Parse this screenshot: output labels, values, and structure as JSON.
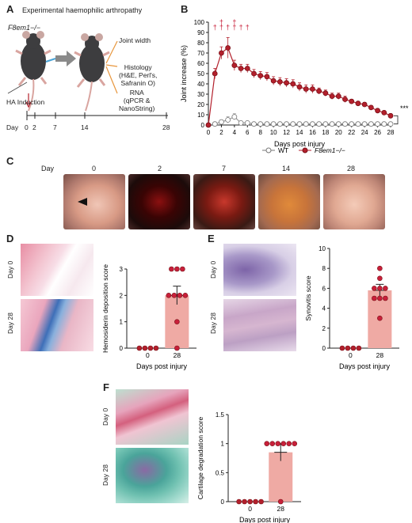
{
  "panels": {
    "A": "A",
    "B": "B",
    "C": "C",
    "D": "D",
    "E": "E",
    "F": "F"
  },
  "panel_a": {
    "title": "Experimental haemophilic arthropathy",
    "mouse_label": "F8em1−/−",
    "induction": "HA Induction",
    "timeline_label": "Day",
    "days": [
      "0",
      "2",
      "7",
      "14",
      "28"
    ],
    "outcomes": [
      "Joint width",
      "Histology\n(H&E, Perl's,\nSafranin O)",
      "RNA\n(qPCR &\nNanoString)"
    ]
  },
  "panel_c": {
    "day_label": "Day",
    "days": [
      "0",
      "2",
      "7",
      "14",
      "28"
    ]
  },
  "panel_d": {
    "row_labels": [
      "Day 0",
      "Day 28"
    ]
  },
  "panel_e": {
    "row_labels": [
      "Day 0",
      "Day 28"
    ]
  },
  "panel_f": {
    "row_labels": [
      "Day 0",
      "Day 28"
    ]
  },
  "chart_data": [
    {
      "id": "B",
      "type": "line",
      "xlabel": "Days post injury",
      "ylabel": "Joint increase (%)",
      "xlim": [
        0,
        28
      ],
      "ylim": [
        0,
        100
      ],
      "xticks": [
        0,
        2,
        4,
        6,
        8,
        10,
        12,
        14,
        16,
        18,
        20,
        22,
        24,
        26,
        28
      ],
      "yticks": [
        0,
        10,
        20,
        30,
        40,
        50,
        60,
        70,
        80,
        90,
        100
      ],
      "legend_position": "top-right",
      "significance": "***",
      "dagger_days": [
        1,
        2,
        3,
        4,
        5,
        6
      ],
      "series": [
        {
          "name": "WT",
          "color": "#9a9a9a",
          "x": [
            0,
            1,
            2,
            3,
            4,
            5,
            6,
            7,
            8,
            9,
            10,
            11,
            12,
            13,
            14,
            15,
            16,
            17,
            18,
            19,
            20,
            21,
            22,
            23,
            24,
            25,
            26,
            27,
            28
          ],
          "y": [
            0,
            1,
            3,
            5,
            8,
            2,
            2,
            1,
            1,
            1,
            1,
            1,
            1,
            1,
            1,
            1,
            1,
            1,
            1,
            1,
            1,
            1,
            1,
            1,
            1,
            1,
            1,
            1,
            1
          ],
          "err": [
            0,
            1,
            2,
            3,
            3,
            1,
            1,
            1,
            1,
            1,
            1,
            1,
            1,
            1,
            1,
            1,
            1,
            1,
            1,
            1,
            1,
            1,
            1,
            1,
            1,
            1,
            1,
            1,
            1
          ]
        },
        {
          "name": "F8em1−/−",
          "color": "#b3202c",
          "x": [
            0,
            1,
            2,
            3,
            4,
            5,
            6,
            7,
            8,
            9,
            10,
            11,
            12,
            13,
            14,
            15,
            16,
            17,
            18,
            19,
            20,
            21,
            22,
            23,
            24,
            25,
            26,
            27,
            28
          ],
          "y": [
            0,
            50,
            70,
            75,
            58,
            55,
            55,
            50,
            48,
            47,
            43,
            42,
            41,
            40,
            37,
            35,
            35,
            33,
            31,
            28,
            28,
            25,
            23,
            21,
            20,
            17,
            14,
            12,
            9
          ],
          "err": [
            0,
            5,
            6,
            10,
            5,
            4,
            4,
            4,
            4,
            4,
            4,
            4,
            4,
            4,
            4,
            4,
            4,
            3,
            3,
            3,
            3,
            3,
            2,
            2,
            2,
            2,
            2,
            2,
            2
          ]
        }
      ]
    },
    {
      "id": "D",
      "type": "bar",
      "ylabel": "Hemosiderin deposition score",
      "xlabel": "Days post injury",
      "categories": [
        "0",
        "28"
      ],
      "values": [
        0,
        2
      ],
      "err": [
        0,
        0.35
      ],
      "ylim": [
        0,
        3
      ],
      "yticks": [
        0,
        1,
        2,
        3
      ],
      "points": [
        [
          0,
          0,
          0,
          0
        ],
        [
          3,
          3,
          3,
          2,
          2,
          2,
          2,
          1,
          0
        ]
      ]
    },
    {
      "id": "E",
      "type": "bar",
      "ylabel": "Synovitis score",
      "xlabel": "Days post injury",
      "categories": [
        "0",
        "28"
      ],
      "values": [
        0,
        5.8
      ],
      "err": [
        0,
        0.6
      ],
      "ylim": [
        0,
        10
      ],
      "yticks": [
        0,
        2,
        4,
        6,
        8,
        10
      ],
      "points": [
        [
          0,
          0,
          0,
          0
        ],
        [
          8,
          7,
          6,
          6,
          6,
          5,
          5,
          5,
          3
        ]
      ]
    },
    {
      "id": "F",
      "type": "bar",
      "ylabel": "Cartilage degradation score",
      "xlabel": "Days post injury",
      "categories": [
        "0",
        "28"
      ],
      "values": [
        0,
        0.85
      ],
      "err": [
        0,
        0.15
      ],
      "ylim": [
        0,
        1.5
      ],
      "yticks": [
        0,
        0.5,
        1.0,
        1.5
      ],
      "points": [
        [
          0,
          0,
          0,
          0,
          0
        ],
        [
          1,
          1,
          1,
          1,
          1,
          1,
          0
        ]
      ]
    }
  ]
}
